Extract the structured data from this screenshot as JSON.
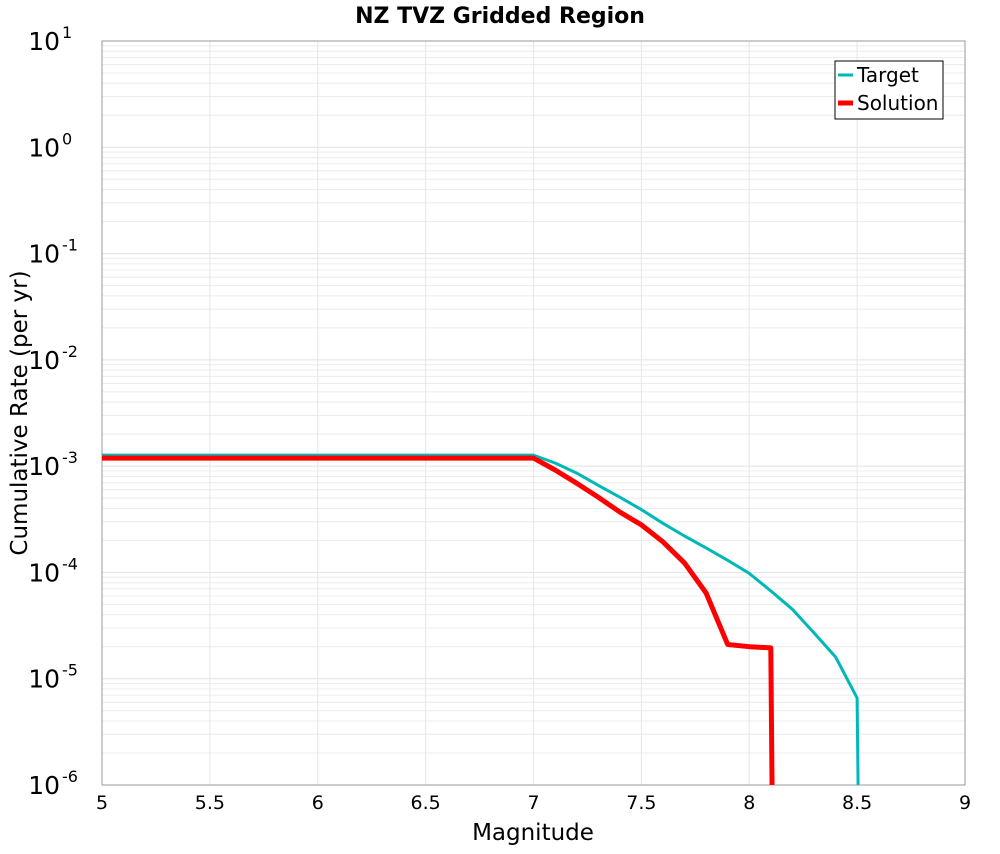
{
  "chart_data": {
    "type": "line",
    "title": "NZ TVZ Gridded Region",
    "xlabel": "Magnitude",
    "ylabel": "Cumulative Rate (per yr)",
    "xlim": [
      5,
      9
    ],
    "ylim": [
      1e-06,
      10
    ],
    "yscale": "log",
    "grid": true,
    "legend_position": "top-right",
    "x_ticks": [
      "5",
      "5.5",
      "6",
      "6.5",
      "7",
      "7.5",
      "8",
      "8.5",
      "9"
    ],
    "y_ticks": [
      {
        "base": "10",
        "exp": "1"
      },
      {
        "base": "10",
        "exp": "0"
      },
      {
        "base": "10",
        "exp": "-1"
      },
      {
        "base": "10",
        "exp": "-2"
      },
      {
        "base": "10",
        "exp": "-3"
      },
      {
        "base": "10",
        "exp": "-4"
      },
      {
        "base": "10",
        "exp": "-5"
      },
      {
        "base": "10",
        "exp": "-6"
      }
    ],
    "series": [
      {
        "name": "Target",
        "color": "#00b8b8",
        "x": [
          5.0,
          7.0,
          7.1,
          7.2,
          7.3,
          7.4,
          7.5,
          7.6,
          7.7,
          7.8,
          7.9,
          8.0,
          8.1,
          8.2,
          8.3,
          8.4,
          8.5,
          8.51
        ],
        "y": [
          0.00127,
          0.00127,
          0.00107,
          0.00086,
          0.00066,
          0.00051,
          0.00039,
          0.00029,
          0.00022,
          0.00017,
          0.00013,
          9.8e-05,
          6.7e-05,
          4.5e-05,
          2.7e-05,
          1.6e-05,
          6.6e-06,
          1e-07
        ]
      },
      {
        "name": "Solution",
        "color": "#ff0000",
        "x": [
          5.0,
          7.0,
          7.1,
          7.2,
          7.3,
          7.4,
          7.5,
          7.6,
          7.7,
          7.8,
          7.9,
          8.0,
          8.1,
          8.11
        ],
        "y": [
          0.00119,
          0.00119,
          0.00092,
          0.00069,
          0.00051,
          0.00037,
          0.00028,
          0.000194,
          0.000123,
          6.4e-05,
          2.1e-05,
          2e-05,
          1.95e-05,
          1e-07
        ]
      }
    ]
  }
}
